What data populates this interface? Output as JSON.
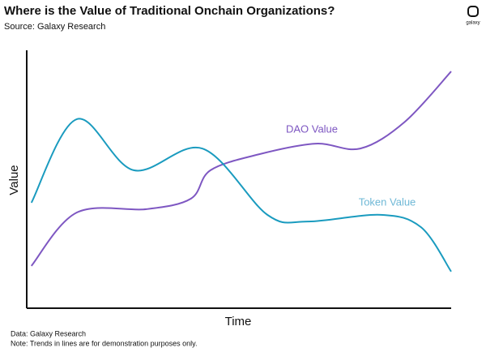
{
  "chart_data": {
    "type": "line",
    "title": "Where is the Value of Traditional Onchain Organizations?",
    "subtitle": "Source: Galaxy Research",
    "x_label": "Time",
    "y_label": "Value",
    "notes": [
      "Data: Galaxy Research",
      "Note: Trends in lines are for demonstration purposes only."
    ],
    "logo_text": "galaxy",
    "xlim": [
      0,
      100
    ],
    "ylim": [
      0,
      100
    ],
    "series": [
      {
        "name": "DAO Value",
        "color": "#7e57c2",
        "x": [
          1.1,
          11.8,
          28.2,
          38.7,
          43.3,
          54.8,
          68.1,
          78.6,
          89.1,
          100
        ],
        "values": [
          16.4,
          37.1,
          38.4,
          42.5,
          53.5,
          59.7,
          63.8,
          61.9,
          72.3,
          91.8
        ]
      },
      {
        "name": "Token Value",
        "color": "#1a9bbf",
        "x": [
          1.1,
          11.8,
          25.2,
          41.4,
          56.7,
          66.2,
          83.4,
          92.9,
          100
        ],
        "values": [
          40.9,
          73.3,
          53.5,
          61.9,
          36.2,
          33.6,
          36.2,
          31.4,
          14.2
        ]
      }
    ]
  }
}
